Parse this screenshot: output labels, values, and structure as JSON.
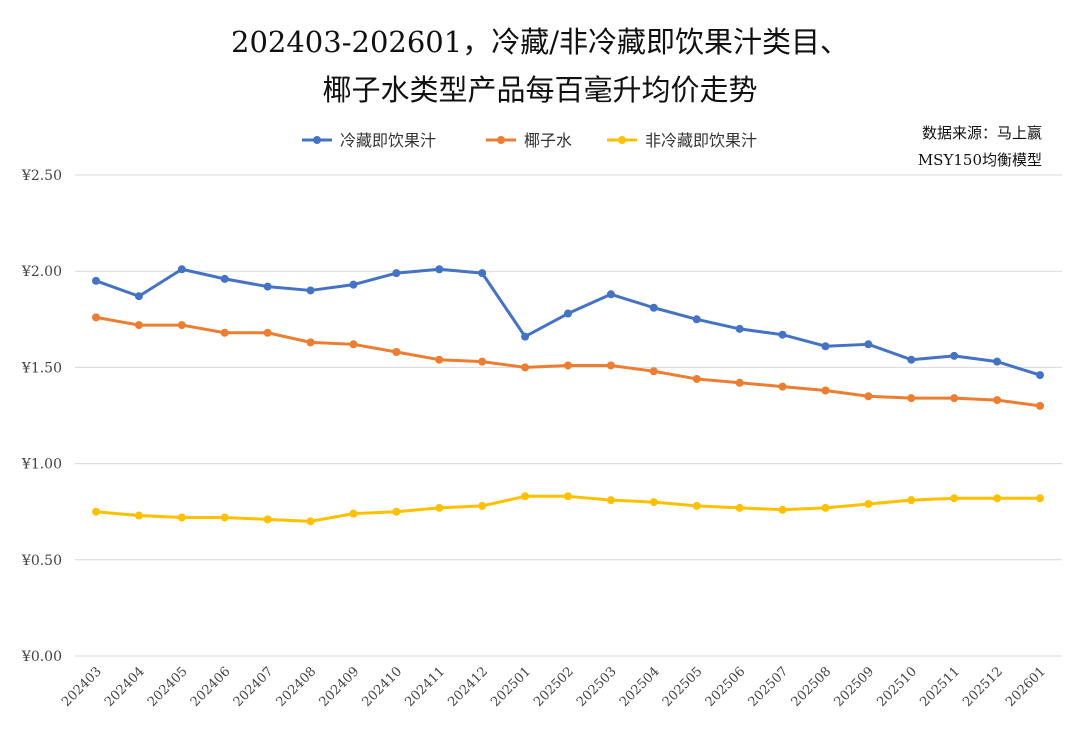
{
  "chart_data": {
    "type": "line",
    "title_lines": [
      "202403-202601，冷藏/非冷藏即饮果汁类目、",
      "椰子水类型产品每百毫升均价走势"
    ],
    "note_lines": [
      "数据来源：马上赢",
      "MSY150均衡模型"
    ],
    "categories": [
      "202403",
      "202404",
      "202405",
      "202406",
      "202407",
      "202408",
      "202409",
      "202410",
      "202411",
      "202412",
      "202501",
      "202502",
      "202503",
      "202504",
      "202505",
      "202506",
      "202507",
      "202508",
      "202509",
      "202510",
      "202511",
      "202512",
      "202601"
    ],
    "ylim": [
      0,
      2.5
    ],
    "yticks": [
      0,
      0.5,
      1.0,
      1.5,
      2.0,
      2.5
    ],
    "ytick_labels": [
      "¥0.00",
      "¥0.50",
      "¥1.00",
      "¥1.50",
      "¥2.00",
      "¥2.50"
    ],
    "grid": true,
    "legend_placement": "top",
    "series": [
      {
        "name": "冷藏即饮果汁",
        "color": "#4472C4",
        "values": [
          1.95,
          1.87,
          2.01,
          1.96,
          1.92,
          1.9,
          1.93,
          1.99,
          2.01,
          1.99,
          1.66,
          1.78,
          1.88,
          1.81,
          1.75,
          1.7,
          1.67,
          1.61,
          1.62,
          1.54,
          1.56,
          1.53,
          1.46
        ]
      },
      {
        "name": "椰子水",
        "color": "#ED7D31",
        "values": [
          1.76,
          1.72,
          1.72,
          1.68,
          1.68,
          1.63,
          1.62,
          1.58,
          1.54,
          1.53,
          1.5,
          1.51,
          1.51,
          1.48,
          1.44,
          1.42,
          1.4,
          1.38,
          1.35,
          1.34,
          1.34,
          1.33,
          1.3
        ]
      },
      {
        "name": "非冷藏即饮果汁",
        "color": "#FFC000",
        "values": [
          0.75,
          0.73,
          0.72,
          0.72,
          0.71,
          0.7,
          0.74,
          0.75,
          0.77,
          0.78,
          0.83,
          0.83,
          0.81,
          0.8,
          0.78,
          0.77,
          0.76,
          0.77,
          0.79,
          0.81,
          0.82,
          0.82,
          0.82
        ]
      }
    ]
  }
}
